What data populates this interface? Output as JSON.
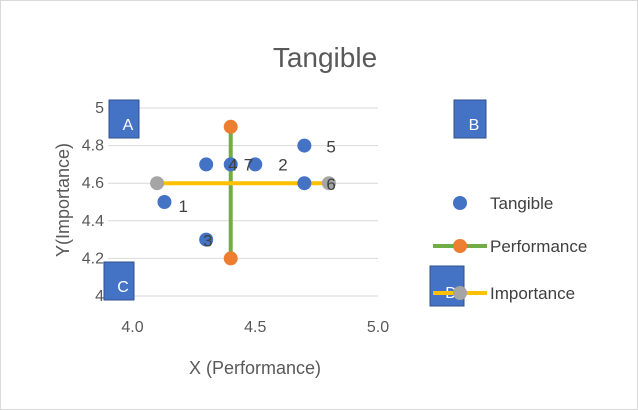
{
  "chart_data": {
    "type": "scatter",
    "title": "Tangible",
    "xlabel": "X (Performance)",
    "ylabel": "Y(Importance)",
    "xlim": [
      3.9,
      5.0
    ],
    "ylim": [
      4.0,
      5.0
    ],
    "x_ticks": [
      {
        "value": 4.0,
        "label": "4.0"
      },
      {
        "value": 4.5,
        "label": "4.5"
      },
      {
        "value": 5.0,
        "label": "5.0"
      }
    ],
    "y_ticks": [
      {
        "value": 4.0,
        "label": "4"
      },
      {
        "value": 4.2,
        "label": "4.2"
      },
      {
        "value": 4.4,
        "label": "4.4"
      },
      {
        "value": 4.6,
        "label": "4.6"
      },
      {
        "value": 4.8,
        "label": "4.8"
      },
      {
        "value": 5.0,
        "label": "5"
      }
    ],
    "grid": "horizontal",
    "legend_position": "right",
    "series": [
      {
        "name": "Tangible",
        "color": "#4472c4",
        "points": [
          {
            "label": "1",
            "x": 4.13,
            "y": 4.5
          },
          {
            "label": "2",
            "x": 4.5,
            "y": 4.7
          },
          {
            "label": "3",
            "x": 4.3,
            "y": 4.3
          },
          {
            "label": "4",
            "x": 4.3,
            "y": 4.7
          },
          {
            "label": "5",
            "x": 4.7,
            "y": 4.8
          },
          {
            "label": "6",
            "x": 4.7,
            "y": 4.6
          },
          {
            "label": "7",
            "x": 4.4,
            "y": 4.7
          }
        ]
      },
      {
        "name": "Performance",
        "color": "#70ad47",
        "marker_color": "#ed7d31",
        "points": [
          {
            "x": 4.4,
            "y": 4.9
          },
          {
            "x": 4.4,
            "y": 4.2
          }
        ]
      },
      {
        "name": "Importance",
        "color": "#ffc000",
        "marker_color": "#a5a5a5",
        "points": [
          {
            "x": 4.1,
            "y": 4.6
          },
          {
            "x": 4.8,
            "y": 4.6
          }
        ]
      }
    ],
    "quadrant_labels": [
      "A",
      "B",
      "C",
      "D"
    ],
    "quadrant_color": "#4472c4"
  }
}
